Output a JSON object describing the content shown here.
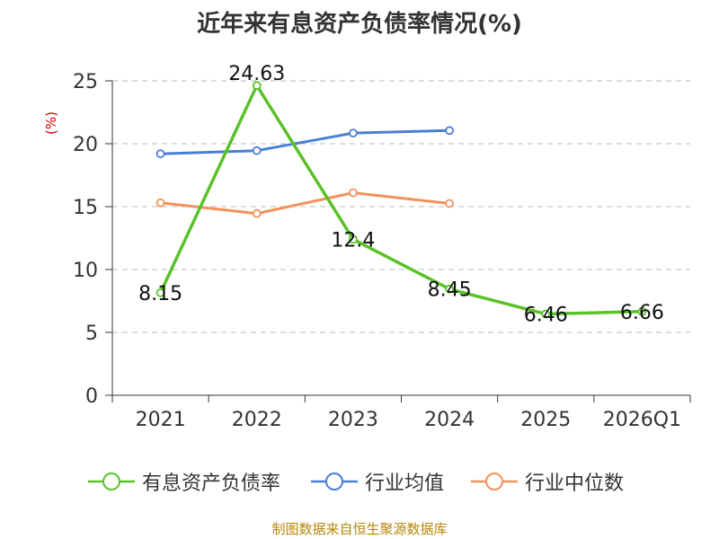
{
  "chart_data": {
    "type": "line",
    "title": "近年来有息资产负债率情况(%)",
    "ylabel": "(%)",
    "xlabel": "",
    "categories": [
      "2021",
      "2022",
      "2023",
      "2024",
      "2025",
      "2026Q1"
    ],
    "ylim": [
      0,
      25
    ],
    "yticks": [
      0,
      5,
      10,
      15,
      20,
      25
    ],
    "grid": true,
    "legend_position": "bottom",
    "series": [
      {
        "name": "有息资产负债率",
        "color": "#5ac229",
        "values": [
          8.15,
          24.63,
          12.4,
          8.45,
          6.46,
          6.66
        ],
        "labels": [
          "8.15",
          "24.63",
          "12.4",
          "8.45",
          "6.46",
          "6.66"
        ]
      },
      {
        "name": "行业均值",
        "color": "#4a7fd6",
        "values": [
          19.2,
          19.45,
          20.85,
          21.05,
          null,
          null
        ]
      },
      {
        "name": "行业中位数",
        "color": "#f5915a",
        "values": [
          15.3,
          14.45,
          16.1,
          15.25,
          null,
          null
        ]
      }
    ]
  },
  "source_text": "制图数据来自恒生聚源数据库"
}
